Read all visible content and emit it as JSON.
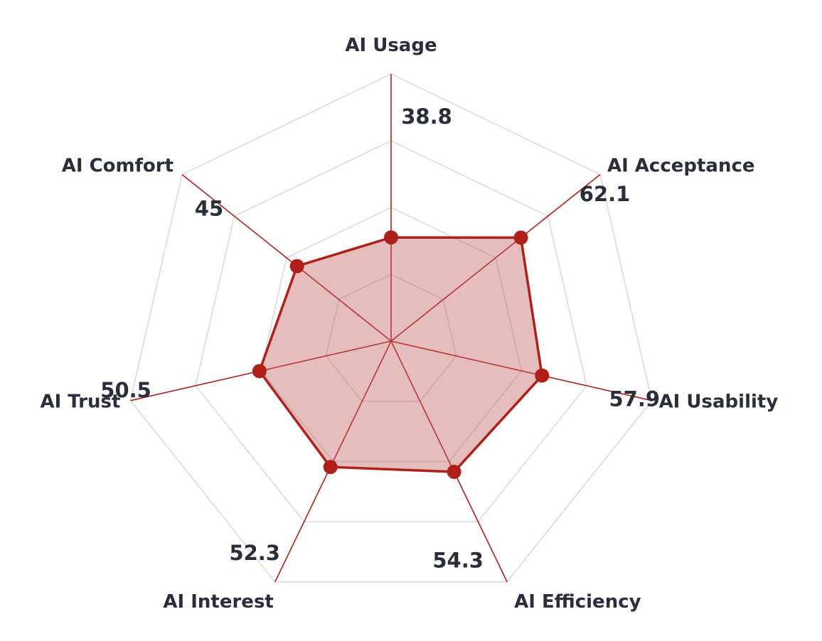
{
  "chart_data": {
    "type": "radar",
    "title": "",
    "categories": [
      "AI Usage",
      "AI Acceptance",
      "AI Usability",
      "AI Efficiency",
      "AI Interest",
      "AI Trust",
      "AI Comfort"
    ],
    "series": [
      {
        "name": "",
        "values": [
          38.8,
          62.1,
          57.9,
          54.3,
          52.3,
          50.5,
          45
        ],
        "labels": [
          "38.8",
          "62.1",
          "57.9",
          "54.3",
          "52.3",
          "50.5",
          "45"
        ]
      }
    ],
    "rlim": [
      0,
      100
    ],
    "grid": true,
    "grid_levels": 4,
    "legend": "none"
  },
  "colors": {
    "series_line": "#b0201b",
    "series_fill": "#c05a5a",
    "spoke": "#b0201b",
    "grid": "#d9d9d9",
    "text": "#2a2e3a"
  }
}
